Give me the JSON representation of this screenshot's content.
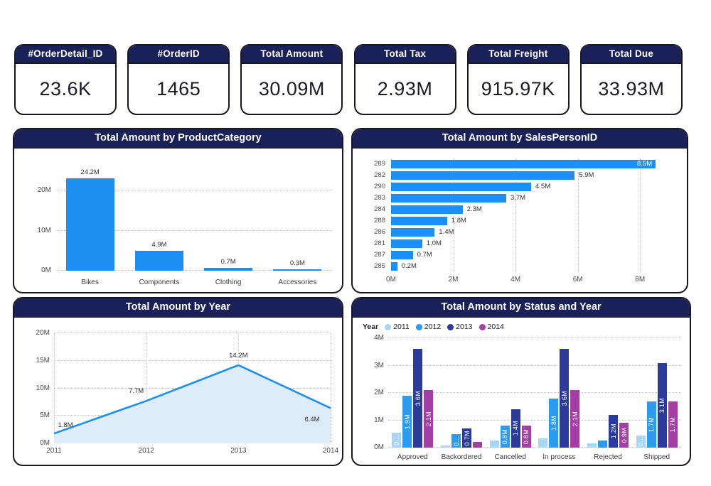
{
  "theme": {
    "navy": "#1A2159",
    "blue": "#1E8FF0",
    "area_fill": "#DCEBFA",
    "grid": "#C3C3C3",
    "text_dark": "#1C1C26"
  },
  "kpi_cards": [
    {
      "label": "#OrderDetail_ID",
      "value": "23.6K"
    },
    {
      "label": "#OrderID",
      "value": "1465"
    },
    {
      "label": "Total Amount",
      "value": "30.09M"
    },
    {
      "label": "Total Tax",
      "value": "2.93M"
    },
    {
      "label": "Total Freight",
      "value": "915.97K"
    },
    {
      "label": "Total Due",
      "value": "33.93M"
    }
  ],
  "chart_data": [
    {
      "type": "bar",
      "title": "Total Amount by ProductCategory",
      "categories": [
        "Bikes",
        "Components",
        "Clothing",
        "Accessories"
      ],
      "values": [
        24.2,
        4.9,
        0.7,
        0.3
      ],
      "labels": [
        "24.2M",
        "4.9M",
        "0.7M",
        "0.3M"
      ],
      "unit": "M",
      "ymax": 25.5,
      "yticks": [
        {
          "label": "0M",
          "v": 0
        },
        {
          "label": "10M",
          "v": 10
        },
        {
          "label": "20M",
          "v": 20
        }
      ],
      "bar_color": "#1E8FF0",
      "grid": "dotted"
    },
    {
      "type": "hbar",
      "title": "Total Amount by SalesPersonID",
      "rows": [
        {
          "id": "289",
          "value": 8.5,
          "label": "8.5M",
          "label_inside": true
        },
        {
          "id": "282",
          "value": 5.9,
          "label": "5.9M",
          "label_inside": false
        },
        {
          "id": "290",
          "value": 4.5,
          "label": "4.5M",
          "label_inside": false
        },
        {
          "id": "283",
          "value": 3.7,
          "label": "3.7M",
          "label_inside": false
        },
        {
          "id": "284",
          "value": 2.3,
          "label": "2.3M",
          "label_inside": false
        },
        {
          "id": "288",
          "value": 1.8,
          "label": "1.8M",
          "label_inside": false
        },
        {
          "id": "286",
          "value": 1.4,
          "label": "1.4M",
          "label_inside": false
        },
        {
          "id": "281",
          "value": 1.0,
          "label": "1.0M",
          "label_inside": false
        },
        {
          "id": "287",
          "value": 0.7,
          "label": "0.7M",
          "label_inside": false
        },
        {
          "id": "285",
          "value": 0.2,
          "label": "0.2M",
          "label_inside": false
        }
      ],
      "xmax": 9,
      "xticks": [
        {
          "label": "0M",
          "v": 0
        },
        {
          "label": "2M",
          "v": 2
        },
        {
          "label": "4M",
          "v": 4
        },
        {
          "label": "6M",
          "v": 6
        },
        {
          "label": "8M",
          "v": 8
        }
      ],
      "bar_color": "#1E8FF0",
      "grid": "dotted"
    },
    {
      "type": "area",
      "title": "Total Amount by Year",
      "x": [
        "2011",
        "2012",
        "2013",
        "2014"
      ],
      "values": [
        1.8,
        7.7,
        14.2,
        6.4
      ],
      "labels": [
        "1.8M",
        "7.7M",
        "14.2M",
        "6.4M"
      ],
      "ymax": 20,
      "yticks": [
        {
          "label": "0M",
          "v": 0
        },
        {
          "label": "5M",
          "v": 5
        },
        {
          "label": "10M",
          "v": 10
        },
        {
          "label": "15M",
          "v": 15
        },
        {
          "label": "20M",
          "v": 20
        }
      ],
      "line_color": "#1E8FF0",
      "fill_color": "#DCEBFA",
      "grid": "dotted"
    },
    {
      "type": "grouped-bar",
      "title": "Total Amount by Status and Year",
      "legend_title": "Year",
      "legend_position": "top-left",
      "series": [
        {
          "name": "2011",
          "color": "#A6D6F4"
        },
        {
          "name": "2012",
          "color": "#2D9BF0"
        },
        {
          "name": "2013",
          "color": "#2C3B99"
        },
        {
          "name": "2014",
          "color": "#A23FA2"
        }
      ],
      "categories": [
        "Approved",
        "Backordered",
        "Cancelled",
        "In process",
        "Rejected",
        "Shipped"
      ],
      "values": [
        [
          0.55,
          1.9,
          3.6,
          2.1
        ],
        [
          0.07,
          0.5,
          0.7,
          0.2
        ],
        [
          0.25,
          0.8,
          1.4,
          0.8
        ],
        [
          0.35,
          1.8,
          3.6,
          2.1
        ],
        [
          0.15,
          0.25,
          1.2,
          0.9
        ],
        [
          0.45,
          1.7,
          3.1,
          1.7
        ]
      ],
      "bar_labels": [
        [
          "0...",
          "1.9M",
          "3.6M",
          "2.1M"
        ],
        [
          "",
          "0...",
          "0.7M",
          ""
        ],
        [
          "",
          "0.8M",
          "1.4M",
          "0.8M"
        ],
        [
          "...",
          "1.8M",
          "3.6M",
          "2.1M"
        ],
        [
          "",
          "",
          "1.2M",
          "0.9M"
        ],
        [
          "0...",
          "1.7M",
          "3.1M",
          "1.7M"
        ]
      ],
      "ymax": 4,
      "yticks": [
        {
          "label": "0M",
          "v": 0
        },
        {
          "label": "1M",
          "v": 1
        },
        {
          "label": "2M",
          "v": 2
        },
        {
          "label": "3M",
          "v": 3
        },
        {
          "label": "4M",
          "v": 4
        }
      ],
      "grid": "dotted"
    }
  ]
}
